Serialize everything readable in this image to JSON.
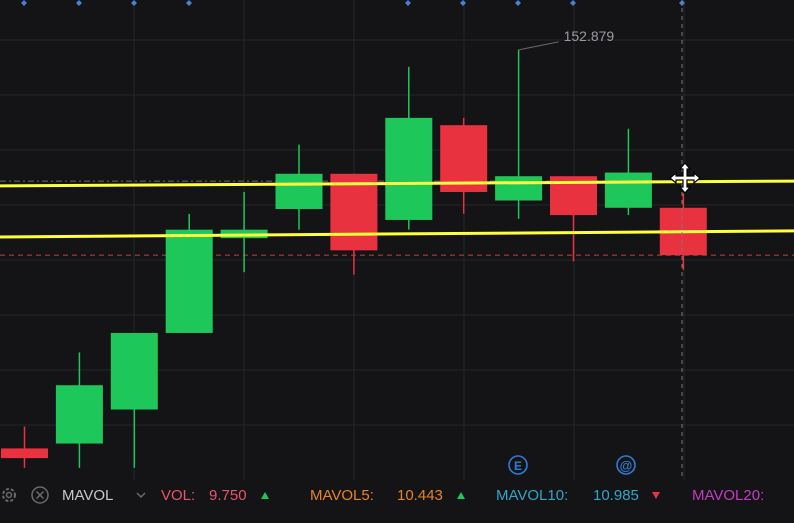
{
  "chart_data": {
    "type": "candlestick",
    "candles": [
      {
        "o": 135.6,
        "c": 134.8,
        "h": 137.4,
        "l": 134.0
      },
      {
        "o": 136.0,
        "c": 140.8,
        "h": 143.5,
        "l": 134.0
      },
      {
        "o": 138.8,
        "c": 145.1,
        "h": 145.1,
        "l": 134.0
      },
      {
        "o": 145.1,
        "c": 153.6,
        "h": 154.9,
        "l": 145.1
      },
      {
        "o": 152.9,
        "c": 153.6,
        "h": 156.7,
        "l": 150.1
      },
      {
        "o": 155.3,
        "c": 158.2,
        "h": 160.6,
        "l": 153.6
      },
      {
        "o": 158.2,
        "c": 151.9,
        "h": 158.2,
        "l": 149.9
      },
      {
        "o": 154.4,
        "c": 162.8,
        "h": 167.0,
        "l": 153.6
      },
      {
        "o": 162.2,
        "c": 156.7,
        "h": 162.8,
        "l": 154.9
      },
      {
        "o": 156.0,
        "c": 158.0,
        "h": 168.4,
        "l": 154.5
      },
      {
        "o": 158.0,
        "c": 154.8,
        "h": 158.0,
        "l": 151.0
      },
      {
        "o": 155.4,
        "c": 158.3,
        "h": 161.9,
        "l": 154.8
      },
      {
        "o": 155.4,
        "c": 151.5,
        "h": 156.6,
        "l": 150.3
      }
    ],
    "price_min": 133.0,
    "price_max": 172.5,
    "high_annotation": "152.879",
    "trendlines": [
      {
        "x1": 0,
        "y1": 157.2,
        "x2": 1.0,
        "y2": 157.6
      },
      {
        "x1": 0,
        "y1": 153.0,
        "x2": 1.0,
        "y2": 153.5
      }
    ],
    "current_price_line": 151.5,
    "dashdot_line": 157.6,
    "colors": {
      "up": "#1ec759",
      "down": "#e8323f",
      "trendline": "#ffff3b",
      "dashed": "#b03a33",
      "dashdot": "#6a6a6e",
      "grid": "#25262a"
    }
  },
  "icons": {
    "move_cursor": "move-cursor-icon",
    "event_e": "E",
    "event_at": "@",
    "settings": "gear-icon",
    "close": "close-icon"
  },
  "indicator_bar": {
    "name": "MAVOL",
    "vol_label": "VOL:",
    "vol_value": "9.750",
    "mavol5_label": "MAVOL5:",
    "mavol5_value": "10.443",
    "mavol10_label": "MAVOL10:",
    "mavol10_value": "10.985",
    "mavol20_label": "MAVOL20:",
    "colors": {
      "vol": "#e8546c",
      "mavol5": "#e8832a",
      "mavol10": "#2ea6c8",
      "mavol20": "#c43cc0",
      "up": "#1ec759",
      "down": "#e8323f",
      "name": "#c8c8cc"
    }
  }
}
